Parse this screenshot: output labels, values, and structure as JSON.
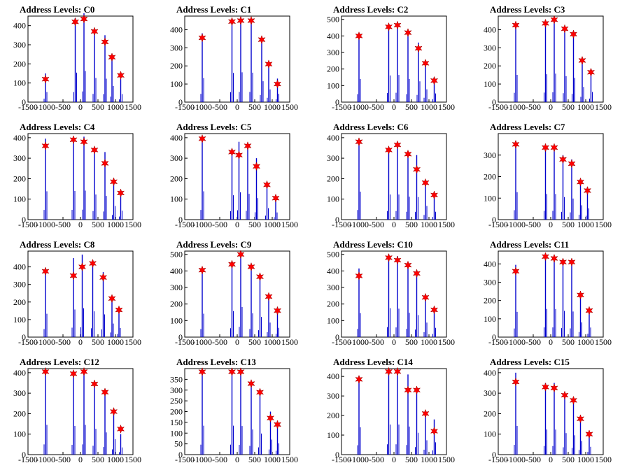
{
  "chart_data": [
    {
      "type": "bar",
      "title": "Address Levels: C0",
      "xlim": [
        -1500,
        1500
      ],
      "ylim": [
        0,
        450
      ],
      "yticks": [
        0,
        100,
        200,
        300,
        400
      ],
      "xticks": [
        -1500,
        -1000,
        -500,
        0,
        500,
        1000,
        1500
      ],
      "x": [
        -1000,
        -150,
        100,
        400,
        700,
        900,
        1150
      ],
      "values": [
        120,
        420,
        435,
        370,
        315,
        235,
        140
      ],
      "bar_heights": [
        150,
        440,
        465,
        360,
        350,
        240,
        120
      ]
    },
    {
      "type": "bar",
      "title": "Address Levels: C1",
      "xlim": [
        -1500,
        1500
      ],
      "ylim": [
        0,
        475
      ],
      "yticks": [
        0,
        100,
        200,
        300,
        400
      ],
      "xticks": [
        -1500,
        -1000,
        -500,
        0,
        500,
        1000,
        1500
      ],
      "x": [
        -1000,
        -150,
        100,
        400,
        700,
        900,
        1150
      ],
      "values": [
        355,
        445,
        450,
        450,
        345,
        210,
        100
      ],
      "bar_heights": [
        380,
        460,
        470,
        465,
        330,
        200,
        130
      ]
    },
    {
      "type": "bar",
      "title": "Address Levels: C2",
      "xlim": [
        -1500,
        1500
      ],
      "ylim": [
        0,
        520
      ],
      "yticks": [
        0,
        100,
        200,
        300,
        400,
        500
      ],
      "xticks": [
        -1500,
        -1000,
        -500,
        0,
        500,
        1000,
        1500
      ],
      "x": [
        -1000,
        -150,
        100,
        400,
        700,
        900,
        1150
      ],
      "values": [
        400,
        455,
        465,
        420,
        325,
        235,
        130
      ],
      "bar_heights": [
        400,
        460,
        470,
        400,
        360,
        220,
        150
      ]
    },
    {
      "type": "bar",
      "title": "Address Levels: C3",
      "xlim": [
        -1500,
        1500
      ],
      "ylim": [
        0,
        475
      ],
      "yticks": [
        0,
        100,
        200,
        300,
        400
      ],
      "xticks": [
        -1500,
        -1000,
        -500,
        0,
        500,
        1000,
        1500
      ],
      "x": [
        -1000,
        -150,
        100,
        400,
        650,
        900,
        1150
      ],
      "values": [
        425,
        435,
        455,
        405,
        375,
        230,
        165
      ],
      "bar_heights": [
        430,
        440,
        450,
        410,
        380,
        240,
        160
      ]
    },
    {
      "type": "bar",
      "title": "Address Levels: C4",
      "xlim": [
        -1500,
        1500
      ],
      "ylim": [
        0,
        420
      ],
      "yticks": [
        0,
        100,
        200,
        300,
        400
      ],
      "xticks": [
        -1500,
        -1000,
        -500,
        0,
        500,
        1000,
        1500
      ],
      "x": [
        -1000,
        -200,
        100,
        400,
        700,
        950,
        1150
      ],
      "values": [
        360,
        390,
        380,
        340,
        275,
        185,
        130
      ],
      "bar_heights": [
        395,
        400,
        405,
        350,
        330,
        190,
        125
      ]
    },
    {
      "type": "bar",
      "title": "Address Levels: C5",
      "xlim": [
        -1500,
        1500
      ],
      "ylim": [
        0,
        420
      ],
      "yticks": [
        0,
        100,
        200,
        300,
        400
      ],
      "xticks": [
        -1500,
        -1000,
        -500,
        0,
        500,
        1000,
        1500
      ],
      "x": [
        -1000,
        -150,
        50,
        300,
        550,
        850,
        1100
      ],
      "values": [
        395,
        330,
        315,
        360,
        260,
        170,
        105
      ],
      "bar_heights": [
        395,
        340,
        380,
        360,
        300,
        160,
        100
      ]
    },
    {
      "type": "bar",
      "title": "Address Levels: C6",
      "xlim": [
        -1500,
        1500
      ],
      "ylim": [
        0,
        420
      ],
      "yticks": [
        0,
        100,
        200,
        300,
        400
      ],
      "xticks": [
        -1500,
        -1000,
        -500,
        0,
        500,
        1000,
        1500
      ],
      "x": [
        -1000,
        -150,
        100,
        400,
        650,
        900,
        1150
      ],
      "values": [
        380,
        340,
        365,
        320,
        245,
        180,
        120
      ],
      "bar_heights": [
        390,
        350,
        350,
        320,
        315,
        190,
        110
      ]
    },
    {
      "type": "bar",
      "title": "Address Levels: C7",
      "xlim": [
        -1500,
        1500
      ],
      "ylim": [
        0,
        400
      ],
      "yticks": [
        0,
        100,
        200,
        300
      ],
      "xticks": [
        -1500,
        -1000,
        -500,
        0,
        500,
        1000,
        1500
      ],
      "x": [
        -1000,
        -150,
        100,
        350,
        600,
        850,
        1050
      ],
      "values": [
        350,
        335,
        335,
        280,
        260,
        175,
        135
      ],
      "bar_heights": [
        365,
        340,
        340,
        300,
        280,
        190,
        150
      ]
    },
    {
      "type": "bar",
      "title": "Address Levels: C8",
      "xlim": [
        -1500,
        1500
      ],
      "ylim": [
        0,
        490
      ],
      "yticks": [
        0,
        100,
        200,
        300,
        400
      ],
      "xticks": [
        -1500,
        -1000,
        -500,
        0,
        500,
        1000,
        1500
      ],
      "x": [
        -1000,
        -200,
        50,
        350,
        650,
        900,
        1100
      ],
      "values": [
        375,
        350,
        400,
        420,
        340,
        220,
        155
      ],
      "bar_heights": [
        380,
        450,
        470,
        420,
        370,
        220,
        150
      ]
    },
    {
      "type": "bar",
      "title": "Address Levels: C9",
      "xlim": [
        -1500,
        1500
      ],
      "ylim": [
        0,
        520
      ],
      "yticks": [
        0,
        100,
        200,
        300,
        400,
        500
      ],
      "xticks": [
        -1500,
        -1000,
        -500,
        0,
        500,
        1000,
        1500
      ],
      "x": [
        -1000,
        -150,
        100,
        400,
        650,
        900,
        1150
      ],
      "values": [
        405,
        440,
        500,
        425,
        365,
        245,
        160
      ],
      "bar_heights": [
        405,
        450,
        520,
        410,
        350,
        250,
        160
      ]
    },
    {
      "type": "bar",
      "title": "Address Levels: C10",
      "xlim": [
        -1500,
        1500
      ],
      "ylim": [
        0,
        520
      ],
      "yticks": [
        0,
        100,
        200,
        300,
        400,
        500
      ],
      "xticks": [
        -1500,
        -1000,
        -500,
        0,
        500,
        1000,
        1500
      ],
      "x": [
        -1000,
        -150,
        100,
        400,
        650,
        900,
        1150
      ],
      "values": [
        370,
        480,
        465,
        435,
        385,
        240,
        165
      ],
      "bar_heights": [
        415,
        500,
        490,
        420,
        380,
        250,
        160
      ]
    },
    {
      "type": "bar",
      "title": "Address Levels: C11",
      "xlim": [
        -1500,
        1500
      ],
      "ylim": [
        0,
        470
      ],
      "yticks": [
        0,
        100,
        200,
        300,
        400
      ],
      "xticks": [
        -1500,
        -1000,
        -500,
        0,
        500,
        1000,
        1500
      ],
      "x": [
        -1000,
        -150,
        100,
        350,
        600,
        850,
        1100
      ],
      "values": [
        360,
        440,
        430,
        410,
        410,
        230,
        145
      ],
      "bar_heights": [
        395,
        440,
        440,
        410,
        400,
        230,
        150
      ]
    },
    {
      "type": "bar",
      "title": "Address Levels: C12",
      "xlim": [
        -1500,
        1500
      ],
      "ylim": [
        0,
        420
      ],
      "yticks": [
        0,
        100,
        200,
        300,
        400
      ],
      "xticks": [
        -1500,
        -1000,
        -500,
        0,
        500,
        1000,
        1500
      ],
      "x": [
        -1000,
        -200,
        100,
        400,
        700,
        950,
        1150
      ],
      "values": [
        405,
        395,
        405,
        345,
        305,
        210,
        125
      ],
      "bar_heights": [
        415,
        400,
        415,
        360,
        310,
        215,
        100
      ]
    },
    {
      "type": "bar",
      "title": "Address Levels: C13",
      "xlim": [
        -1500,
        1500
      ],
      "ylim": [
        0,
        400
      ],
      "yticks": [
        0,
        50,
        100,
        150,
        200,
        250,
        300,
        350
      ],
      "xticks": [
        -1500,
        -1000,
        -500,
        0,
        500,
        1000,
        1500
      ],
      "x": [
        -1000,
        -150,
        100,
        400,
        650,
        950,
        1150
      ],
      "values": [
        385,
        385,
        385,
        330,
        290,
        170,
        140
      ],
      "bar_heights": [
        385,
        385,
        380,
        335,
        280,
        200,
        150
      ]
    },
    {
      "type": "bar",
      "title": "Address Levels: C14",
      "xlim": [
        -1500,
        1500
      ],
      "ylim": [
        0,
        440
      ],
      "yticks": [
        0,
        100,
        200,
        300,
        400
      ],
      "xticks": [
        -1500,
        -1000,
        -500,
        0,
        500,
        1000,
        1500
      ],
      "x": [
        -1000,
        -150,
        100,
        400,
        650,
        900,
        1150
      ],
      "values": [
        385,
        425,
        425,
        330,
        330,
        210,
        120
      ],
      "bar_heights": [
        400,
        440,
        440,
        410,
        320,
        210,
        180
      ]
    },
    {
      "type": "bar",
      "title": "Address Levels: C15",
      "xlim": [
        -1500,
        1500
      ],
      "ylim": [
        0,
        420
      ],
      "yticks": [
        0,
        100,
        200,
        300,
        400
      ],
      "xticks": [
        -1500,
        -1000,
        -500,
        0,
        500,
        1000,
        1500
      ],
      "x": [
        -1000,
        -150,
        100,
        400,
        650,
        850,
        1100
      ],
      "values": [
        355,
        330,
        325,
        290,
        265,
        175,
        100
      ],
      "bar_heights": [
        400,
        350,
        350,
        300,
        270,
        190,
        110
      ]
    }
  ],
  "colors": {
    "bar": "#0000cc",
    "marker": "#ff0000",
    "axis": "#000000"
  }
}
